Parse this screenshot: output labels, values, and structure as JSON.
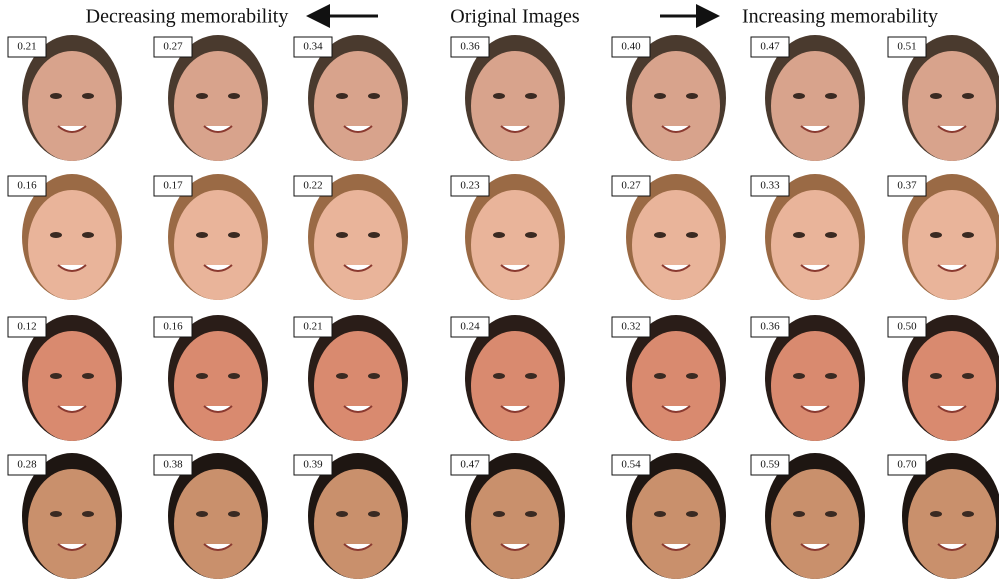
{
  "header": {
    "left": "Decreasing memorability",
    "center": "Original Images",
    "right": "Increasing memorability"
  },
  "rows": [
    [
      "0.21",
      "0.27",
      "0.34",
      "0.36",
      "0.40",
      "0.47",
      "0.51"
    ],
    [
      "0.16",
      "0.17",
      "0.22",
      "0.23",
      "0.27",
      "0.33",
      "0.37"
    ],
    [
      "0.12",
      "0.16",
      "0.21",
      "0.24",
      "0.32",
      "0.36",
      "0.50"
    ],
    [
      "0.28",
      "0.38",
      "0.39",
      "0.47",
      "0.54",
      "0.59",
      "0.70"
    ]
  ]
}
